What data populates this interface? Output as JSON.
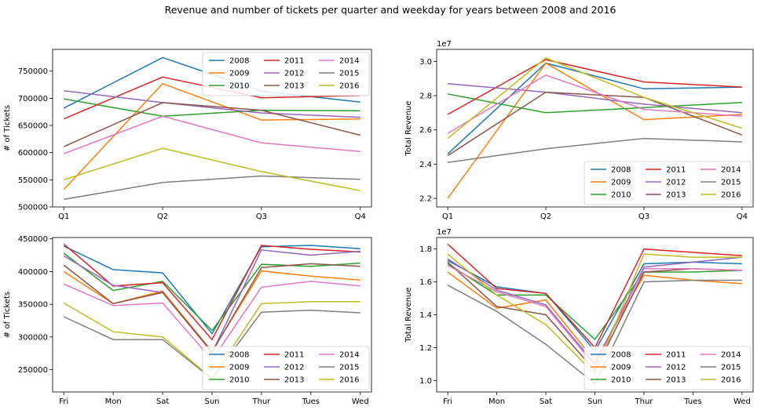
{
  "figure_title": "Revenue and number of tickets per quarter and weekday for years between 2008 and 2016",
  "colors": {
    "2008": "#1f77b4",
    "2009": "#ff7f0e",
    "2010": "#2ca02c",
    "2011": "#d62728",
    "2012": "#9467bd",
    "2013": "#8c564b",
    "2014": "#e377c2",
    "2015": "#7f7f7f",
    "2016": "#bcbd22"
  },
  "chart_data": [
    {
      "id": "tickets_quarter",
      "type": "line",
      "title": "",
      "xlabel": "",
      "ylabel": "# of Tickets",
      "categories": [
        "Q1",
        "Q2",
        "Q3",
        "Q4"
      ],
      "ylim": [
        500000,
        790000
      ],
      "yticks": [
        500000,
        550000,
        600000,
        650000,
        700000,
        750000
      ],
      "ytick_labels": [
        "500000",
        "550000",
        "600000",
        "650000",
        "700000",
        "750000"
      ],
      "exponent_label": "",
      "legend_loc": "upper right",
      "series": [
        {
          "name": "2008",
          "values": [
            682000,
            775000,
            713000,
            693000
          ]
        },
        {
          "name": "2009",
          "values": [
            532000,
            727000,
            660000,
            662000
          ]
        },
        {
          "name": "2010",
          "values": [
            699000,
            667000,
            678000,
            677000
          ]
        },
        {
          "name": "2011",
          "values": [
            662000,
            739000,
            701000,
            705000
          ]
        },
        {
          "name": "2012",
          "values": [
            714000,
            692000,
            673000,
            665000
          ]
        },
        {
          "name": "2013",
          "values": [
            611000,
            692000,
            678000,
            632000
          ]
        },
        {
          "name": "2014",
          "values": [
            598000,
            667000,
            618000,
            602000
          ]
        },
        {
          "name": "2015",
          "values": [
            514000,
            545000,
            557000,
            551000
          ]
        },
        {
          "name": "2016",
          "values": [
            550000,
            608000,
            565000,
            530000
          ]
        }
      ]
    },
    {
      "id": "revenue_quarter",
      "type": "line",
      "title": "",
      "xlabel": "",
      "ylabel": "Total Revenue",
      "categories": [
        "Q1",
        "Q2",
        "Q3",
        "Q4"
      ],
      "ylim": [
        2.15,
        3.07
      ],
      "yticks": [
        2.2,
        2.4,
        2.6,
        2.8,
        3.0
      ],
      "ytick_labels": [
        "2.2",
        "2.4",
        "2.6",
        "2.8",
        "3.0"
      ],
      "exponent_label": "1e7",
      "legend_loc": "lower right",
      "series": [
        {
          "name": "2008",
          "values": [
            2.46,
            2.99,
            2.84,
            2.85
          ]
        },
        {
          "name": "2009",
          "values": [
            2.2,
            2.99,
            2.66,
            2.69
          ]
        },
        {
          "name": "2010",
          "values": [
            2.81,
            2.7,
            2.73,
            2.76
          ]
        },
        {
          "name": "2011",
          "values": [
            2.69,
            3.01,
            2.88,
            2.85
          ]
        },
        {
          "name": "2012",
          "values": [
            2.87,
            2.82,
            2.75,
            2.7
          ]
        },
        {
          "name": "2013",
          "values": [
            2.45,
            2.82,
            2.79,
            2.57
          ]
        },
        {
          "name": "2014",
          "values": [
            2.58,
            2.92,
            2.72,
            2.68
          ]
        },
        {
          "name": "2015",
          "values": [
            2.41,
            2.49,
            2.55,
            2.53
          ]
        },
        {
          "name": "2016",
          "values": [
            2.55,
            3.02,
            2.79,
            2.61
          ]
        }
      ]
    },
    {
      "id": "tickets_weekday",
      "type": "line",
      "title": "",
      "xlabel": "",
      "ylabel": "# of Tickets",
      "categories": [
        "Fri",
        "Mon",
        "Sat",
        "Sun",
        "Thur",
        "Tues",
        "Wed"
      ],
      "ylim": [
        216000,
        452000
      ],
      "yticks": [
        250000,
        300000,
        350000,
        400000,
        450000
      ],
      "ytick_labels": [
        "250000",
        "300000",
        "350000",
        "400000",
        "450000"
      ],
      "exponent_label": "",
      "legend_loc": "lower right",
      "series": [
        {
          "name": "2008",
          "values": [
            439000,
            403000,
            398000,
            305000,
            438000,
            440000,
            435000
          ]
        },
        {
          "name": "2009",
          "values": [
            400000,
            351000,
            370000,
            278000,
            401000,
            393000,
            387000
          ]
        },
        {
          "name": "2010",
          "values": [
            428000,
            371000,
            385000,
            310000,
            411000,
            408000,
            413000
          ]
        },
        {
          "name": "2011",
          "values": [
            442000,
            378000,
            383000,
            296000,
            440000,
            434000,
            430000
          ]
        },
        {
          "name": "2012",
          "values": [
            424000,
            379000,
            368000,
            276000,
            433000,
            425000,
            431000
          ]
        },
        {
          "name": "2013",
          "values": [
            410000,
            351000,
            368000,
            277000,
            406000,
            412000,
            408000
          ]
        },
        {
          "name": "2014",
          "values": [
            381000,
            348000,
            352000,
            265000,
            376000,
            385000,
            378000
          ]
        },
        {
          "name": "2015",
          "values": [
            331000,
            296000,
            296000,
            236000,
            338000,
            341000,
            337000
          ]
        },
        {
          "name": "2016",
          "values": [
            352000,
            308000,
            300000,
            237000,
            351000,
            354000,
            354000
          ]
        }
      ]
    },
    {
      "id": "revenue_weekday",
      "type": "line",
      "title": "",
      "xlabel": "",
      "ylabel": "Total Revenue",
      "categories": [
        "Fri",
        "Mon",
        "Sat",
        "Sun",
        "Thur",
        "Tues",
        "Wed"
      ],
      "ylim": [
        0.93,
        1.87
      ],
      "yticks": [
        1.0,
        1.2,
        1.4,
        1.6,
        1.8
      ],
      "ytick_labels": [
        "1.0",
        "1.2",
        "1.4",
        "1.6",
        "1.8"
      ],
      "exponent_label": "1e7",
      "legend_loc": "lower right",
      "series": [
        {
          "name": "2008",
          "values": [
            1.73,
            1.57,
            1.53,
            1.18,
            1.71,
            1.72,
            1.71
          ]
        },
        {
          "name": "2009",
          "values": [
            1.66,
            1.44,
            1.49,
            1.12,
            1.64,
            1.61,
            1.59
          ]
        },
        {
          "name": "2010",
          "values": [
            1.71,
            1.52,
            1.52,
            1.25,
            1.66,
            1.66,
            1.67
          ]
        },
        {
          "name": "2011",
          "values": [
            1.83,
            1.56,
            1.53,
            1.2,
            1.8,
            1.78,
            1.76
          ]
        },
        {
          "name": "2012",
          "values": [
            1.74,
            1.55,
            1.46,
            1.1,
            1.69,
            1.72,
            1.75
          ]
        },
        {
          "name": "2013",
          "values": [
            1.72,
            1.45,
            1.4,
            1.06,
            1.66,
            1.68,
            1.67
          ]
        },
        {
          "name": "2014",
          "values": [
            1.7,
            1.54,
            1.45,
            1.09,
            1.68,
            1.68,
            1.67
          ]
        },
        {
          "name": "2015",
          "values": [
            1.58,
            1.42,
            1.22,
            0.98,
            1.6,
            1.61,
            1.61
          ]
        },
        {
          "name": "2016",
          "values": [
            1.77,
            1.52,
            1.34,
            1.04,
            1.77,
            1.75,
            1.75
          ]
        }
      ]
    }
  ]
}
